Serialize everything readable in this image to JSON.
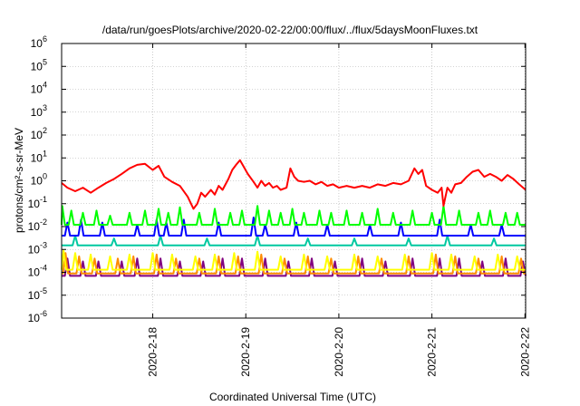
{
  "chart_data": {
    "type": "line",
    "title": "/data/run/goesPlots/archive/2020-02-22/00:00/flux/../flux/5daysMoonFluxes.txt",
    "xlabel": "Coordinated Universal Time (UTC)",
    "ylabel": "protons/cm²-s-sr-MeV",
    "y_scale": "log",
    "ylim": [
      1e-06,
      1000000.0
    ],
    "xlim": [
      "2020-02-17 00:30",
      "2020-02-22 00:10"
    ],
    "grid": true,
    "legend": "none",
    "x_ticks": [
      {
        "date": "2020-02-18 00:00",
        "label": "2020-2-18"
      },
      {
        "date": "2020-02-19 00:00",
        "label": "2020-2-19"
      },
      {
        "date": "2020-02-20 00:00",
        "label": "2020-2-20"
      },
      {
        "date": "2020-02-21 00:00",
        "label": "2020-2-21"
      },
      {
        "date": "2020-02-22 00:00",
        "label": "2020-2-22"
      }
    ],
    "y_ticks": [
      {
        "base": "10",
        "exp": "-6",
        "value": 1e-06
      },
      {
        "base": "10",
        "exp": "-5",
        "value": 1e-05
      },
      {
        "base": "10",
        "exp": "-4",
        "value": 0.0001
      },
      {
        "base": "10",
        "exp": "-3",
        "value": 0.001
      },
      {
        "base": "10",
        "exp": "-2",
        "value": 0.01
      },
      {
        "base": "10",
        "exp": "-1",
        "value": 0.1
      },
      {
        "base": "10",
        "exp": "0",
        "value": 1
      },
      {
        "base": "10",
        "exp": "1",
        "value": 10
      },
      {
        "base": "10",
        "exp": "2",
        "value": 100
      },
      {
        "base": "10",
        "exp": "3",
        "value": 1000
      },
      {
        "base": "10",
        "exp": "4",
        "value": 10000
      },
      {
        "base": "10",
        "exp": "5",
        "value": 100000
      },
      {
        "base": "10",
        "exp": "6",
        "value": 1000000
      }
    ],
    "series": [
      {
        "color": "#ff0000",
        "points": [
          [
            "2020-02-17 00:30",
            0.8
          ],
          [
            "2020-02-17 02:00",
            0.5
          ],
          [
            "2020-02-17 04:00",
            0.35
          ],
          [
            "2020-02-17 06:00",
            0.5
          ],
          [
            "2020-02-17 08:00",
            0.3
          ],
          [
            "2020-02-17 10:00",
            0.5
          ],
          [
            "2020-02-17 12:00",
            0.8
          ],
          [
            "2020-02-17 14:00",
            1.2
          ],
          [
            "2020-02-17 16:00",
            2.0
          ],
          [
            "2020-02-17 18:00",
            3.5
          ],
          [
            "2020-02-17 20:00",
            5.0
          ],
          [
            "2020-02-17 22:00",
            5.5
          ],
          [
            "2020-02-18 00:00",
            3.0
          ],
          [
            "2020-02-18 01:30",
            4.5
          ],
          [
            "2020-02-18 03:00",
            1.5
          ],
          [
            "2020-02-18 05:00",
            0.9
          ],
          [
            "2020-02-18 07:00",
            0.6
          ],
          [
            "2020-02-18 09:00",
            0.2
          ],
          [
            "2020-02-18 10:30",
            0.06
          ],
          [
            "2020-02-18 11:30",
            0.1
          ],
          [
            "2020-02-18 12:30",
            0.3
          ],
          [
            "2020-02-18 13:30",
            0.2
          ],
          [
            "2020-02-18 15:00",
            0.4
          ],
          [
            "2020-02-18 16:00",
            0.25
          ],
          [
            "2020-02-18 17:00",
            0.6
          ],
          [
            "2020-02-18 18:00",
            0.4
          ],
          [
            "2020-02-18 19:30",
            1.2
          ],
          [
            "2020-02-18 20:30",
            3.0
          ],
          [
            "2020-02-18 21:30",
            5.0
          ],
          [
            "2020-02-18 22:30",
            8.0
          ],
          [
            "2020-02-18 23:30",
            4.0
          ],
          [
            "2020-02-19 00:30",
            2.0
          ],
          [
            "2020-02-19 02:00",
            0.9
          ],
          [
            "2020-02-19 03:00",
            0.5
          ],
          [
            "2020-02-19 04:00",
            1.0
          ],
          [
            "2020-02-19 05:00",
            0.6
          ],
          [
            "2020-02-19 06:00",
            0.8
          ],
          [
            "2020-02-19 07:00",
            0.5
          ],
          [
            "2020-02-19 08:00",
            0.6
          ],
          [
            "2020-02-19 09:00",
            0.4
          ],
          [
            "2020-02-19 10:30",
            0.5
          ],
          [
            "2020-02-19 11:30",
            3.5
          ],
          [
            "2020-02-19 12:30",
            1.5
          ],
          [
            "2020-02-19 13:30",
            1.0
          ],
          [
            "2020-02-19 15:00",
            0.9
          ],
          [
            "2020-02-19 16:30",
            1.0
          ],
          [
            "2020-02-19 18:00",
            0.7
          ],
          [
            "2020-02-19 19:30",
            0.9
          ],
          [
            "2020-02-19 21:00",
            0.6
          ],
          [
            "2020-02-19 22:30",
            0.7
          ],
          [
            "2020-02-20 00:00",
            0.5
          ],
          [
            "2020-02-20 02:00",
            0.6
          ],
          [
            "2020-02-20 04:00",
            0.5
          ],
          [
            "2020-02-20 06:00",
            0.6
          ],
          [
            "2020-02-20 08:00",
            0.5
          ],
          [
            "2020-02-20 10:00",
            0.7
          ],
          [
            "2020-02-20 12:00",
            0.6
          ],
          [
            "2020-02-20 14:00",
            0.8
          ],
          [
            "2020-02-20 16:00",
            0.7
          ],
          [
            "2020-02-20 18:00",
            1.0
          ],
          [
            "2020-02-20 19:30",
            3.5
          ],
          [
            "2020-02-20 20:30",
            2.0
          ],
          [
            "2020-02-20 21:30",
            3.0
          ],
          [
            "2020-02-20 22:30",
            0.6
          ],
          [
            "2020-02-21 00:00",
            0.4
          ],
          [
            "2020-02-21 01:30",
            0.3
          ],
          [
            "2020-02-21 02:30",
            0.5
          ],
          [
            "2020-02-21 03:00",
            0.08
          ],
          [
            "2020-02-21 04:00",
            0.5
          ],
          [
            "2020-02-21 05:00",
            0.3
          ],
          [
            "2020-02-21 06:00",
            0.7
          ],
          [
            "2020-02-21 07:30",
            0.8
          ],
          [
            "2020-02-21 09:00",
            1.5
          ],
          [
            "2020-02-21 10:30",
            2.5
          ],
          [
            "2020-02-21 12:00",
            3.0
          ],
          [
            "2020-02-21 13:30",
            1.5
          ],
          [
            "2020-02-21 15:00",
            2.0
          ],
          [
            "2020-02-21 16:30",
            1.5
          ],
          [
            "2020-02-21 18:00",
            1.0
          ],
          [
            "2020-02-21 19:30",
            1.8
          ],
          [
            "2020-02-21 21:00",
            1.2
          ],
          [
            "2020-02-21 22:30",
            0.7
          ],
          [
            "2020-02-22 00:10",
            0.4
          ]
        ]
      },
      {
        "color": "#00ff00",
        "base": 0.012,
        "spikes": [
          [
            "2020-02-17 00:40",
            0.08
          ],
          [
            "2020-02-17 03:00",
            0.05
          ],
          [
            "2020-02-17 06:00",
            0.04
          ],
          [
            "2020-02-17 09:30",
            0.05
          ],
          [
            "2020-02-17 13:00",
            0.03
          ],
          [
            "2020-02-17 18:00",
            0.04
          ],
          [
            "2020-02-17 22:00",
            0.05
          ],
          [
            "2020-02-18 01:30",
            0.06
          ],
          [
            "2020-02-18 04:00",
            0.04
          ],
          [
            "2020-02-18 07:00",
            0.07
          ],
          [
            "2020-02-18 12:00",
            0.04
          ],
          [
            "2020-02-18 16:00",
            0.06
          ],
          [
            "2020-02-18 20:00",
            0.04
          ],
          [
            "2020-02-18 23:00",
            0.05
          ],
          [
            "2020-02-19 03:00",
            0.08
          ],
          [
            "2020-02-19 06:00",
            0.05
          ],
          [
            "2020-02-19 09:00",
            0.04
          ],
          [
            "2020-02-19 12:00",
            0.06
          ],
          [
            "2020-02-19 15:00",
            0.04
          ],
          [
            "2020-02-19 19:00",
            0.05
          ],
          [
            "2020-02-19 22:00",
            0.04
          ],
          [
            "2020-02-20 02:00",
            0.05
          ],
          [
            "2020-02-20 06:00",
            0.04
          ],
          [
            "2020-02-20 10:00",
            0.06
          ],
          [
            "2020-02-20 14:00",
            0.04
          ],
          [
            "2020-02-20 19:00",
            0.05
          ],
          [
            "2020-02-21 00:00",
            0.04
          ],
          [
            "2020-02-21 03:00",
            0.08
          ],
          [
            "2020-02-21 07:00",
            0.05
          ],
          [
            "2020-02-21 12:00",
            0.04
          ],
          [
            "2020-02-21 15:00",
            0.05
          ],
          [
            "2020-02-21 19:00",
            0.04
          ],
          [
            "2020-02-21 22:00",
            0.04
          ]
        ]
      },
      {
        "color": "#0000ff",
        "base": 0.004,
        "spikes": [
          [
            "2020-02-17 02:00",
            0.015
          ],
          [
            "2020-02-17 05:30",
            0.02
          ],
          [
            "2020-02-17 11:00",
            0.015
          ],
          [
            "2020-02-17 20:00",
            0.012
          ],
          [
            "2020-02-18 01:00",
            0.02
          ],
          [
            "2020-02-18 03:30",
            0.015
          ],
          [
            "2020-02-18 08:00",
            0.02
          ],
          [
            "2020-02-18 17:00",
            0.015
          ],
          [
            "2020-02-19 02:00",
            0.025
          ],
          [
            "2020-02-19 05:00",
            0.012
          ],
          [
            "2020-02-19 13:00",
            0.015
          ],
          [
            "2020-02-19 21:00",
            0.012
          ],
          [
            "2020-02-20 08:00",
            0.012
          ],
          [
            "2020-02-20 16:00",
            0.015
          ],
          [
            "2020-02-21 02:00",
            0.02
          ],
          [
            "2020-02-21 10:00",
            0.012
          ],
          [
            "2020-02-21 18:00",
            0.012
          ]
        ]
      },
      {
        "color": "#00c8a0",
        "base": 0.0015,
        "spikes": [
          [
            "2020-02-17 04:00",
            0.004
          ],
          [
            "2020-02-17 14:00",
            0.003
          ],
          [
            "2020-02-18 02:00",
            0.004
          ],
          [
            "2020-02-18 14:00",
            0.003
          ],
          [
            "2020-02-19 03:00",
            0.004
          ],
          [
            "2020-02-19 16:00",
            0.003
          ],
          [
            "2020-02-20 04:00",
            0.003
          ],
          [
            "2020-02-20 18:00",
            0.003
          ],
          [
            "2020-02-21 04:00",
            0.004
          ],
          [
            "2020-02-21 16:00",
            0.003
          ]
        ]
      },
      {
        "color": "#ffff00",
        "base": 0.00013,
        "spikes": [
          [
            "2020-02-17 01:00",
            0.0009
          ],
          [
            "2020-02-17 04:00",
            0.0007
          ],
          [
            "2020-02-17 08:00",
            0.0006
          ],
          [
            "2020-02-17 13:00",
            0.0005
          ],
          [
            "2020-02-17 18:00",
            0.0006
          ],
          [
            "2020-02-18 00:00",
            0.0007
          ],
          [
            "2020-02-18 05:00",
            0.0006
          ],
          [
            "2020-02-18 11:00",
            0.0005
          ],
          [
            "2020-02-18 16:00",
            0.0006
          ],
          [
            "2020-02-18 21:00",
            0.0007
          ],
          [
            "2020-02-19 03:00",
            0.0008
          ],
          [
            "2020-02-19 09:00",
            0.0005
          ],
          [
            "2020-02-19 15:00",
            0.0006
          ],
          [
            "2020-02-19 21:00",
            0.0005
          ],
          [
            "2020-02-20 04:00",
            0.0006
          ],
          [
            "2020-02-20 10:00",
            0.0005
          ],
          [
            "2020-02-20 17:00",
            0.0006
          ],
          [
            "2020-02-21 00:00",
            0.0007
          ],
          [
            "2020-02-21 05:00",
            0.0006
          ],
          [
            "2020-02-21 11:00",
            0.0005
          ],
          [
            "2020-02-21 17:00",
            0.0006
          ],
          [
            "2020-02-21 22:00",
            0.0005
          ]
        ]
      },
      {
        "color": "#ff8c00",
        "base": 9e-05,
        "spikes": [
          [
            "2020-02-17 01:30",
            0.0007
          ],
          [
            "2020-02-17 05:00",
            0.0005
          ],
          [
            "2020-02-17 09:00",
            0.0004
          ],
          [
            "2020-02-17 15:00",
            0.0004
          ],
          [
            "2020-02-17 19:00",
            0.0005
          ],
          [
            "2020-02-18 01:00",
            0.0006
          ],
          [
            "2020-02-18 06:00",
            0.0004
          ],
          [
            "2020-02-18 12:00",
            0.0004
          ],
          [
            "2020-02-18 17:00",
            0.0005
          ],
          [
            "2020-02-18 22:00",
            0.0005
          ],
          [
            "2020-02-19 04:00",
            0.0006
          ],
          [
            "2020-02-19 10:00",
            0.0004
          ],
          [
            "2020-02-19 16:00",
            0.0005
          ],
          [
            "2020-02-19 22:00",
            0.0004
          ],
          [
            "2020-02-20 05:00",
            0.0005
          ],
          [
            "2020-02-20 11:00",
            0.0004
          ],
          [
            "2020-02-20 18:00",
            0.0005
          ],
          [
            "2020-02-21 01:00",
            0.0006
          ],
          [
            "2020-02-21 06:00",
            0.0005
          ],
          [
            "2020-02-21 12:00",
            0.0004
          ],
          [
            "2020-02-21 18:00",
            0.0005
          ],
          [
            "2020-02-21 23:00",
            0.0004
          ]
        ]
      },
      {
        "color": "#800080",
        "base": 7e-05,
        "spikes": [
          [
            "2020-02-17 02:00",
            0.0004
          ],
          [
            "2020-02-17 06:00",
            0.0003
          ],
          [
            "2020-02-17 10:00",
            0.0003
          ],
          [
            "2020-02-17 16:00",
            0.0003
          ],
          [
            "2020-02-17 20:00",
            0.0004
          ],
          [
            "2020-02-18 02:00",
            0.0004
          ],
          [
            "2020-02-18 07:00",
            0.0003
          ],
          [
            "2020-02-18 13:00",
            0.0003
          ],
          [
            "2020-02-18 18:00",
            0.0004
          ],
          [
            "2020-02-18 23:00",
            0.0004
          ],
          [
            "2020-02-19 05:00",
            0.0004
          ],
          [
            "2020-02-19 11:00",
            0.0003
          ],
          [
            "2020-02-19 17:00",
            0.0004
          ],
          [
            "2020-02-19 23:00",
            0.0003
          ],
          [
            "2020-02-20 06:00",
            0.0004
          ],
          [
            "2020-02-20 12:00",
            0.0003
          ],
          [
            "2020-02-20 19:00",
            0.0004
          ],
          [
            "2020-02-21 02:00",
            0.0004
          ],
          [
            "2020-02-21 07:00",
            0.0004
          ],
          [
            "2020-02-21 13:00",
            0.0003
          ],
          [
            "2020-02-21 19:00",
            0.0004
          ],
          [
            "2020-02-21 23:30",
            0.0003
          ]
        ]
      }
    ]
  }
}
